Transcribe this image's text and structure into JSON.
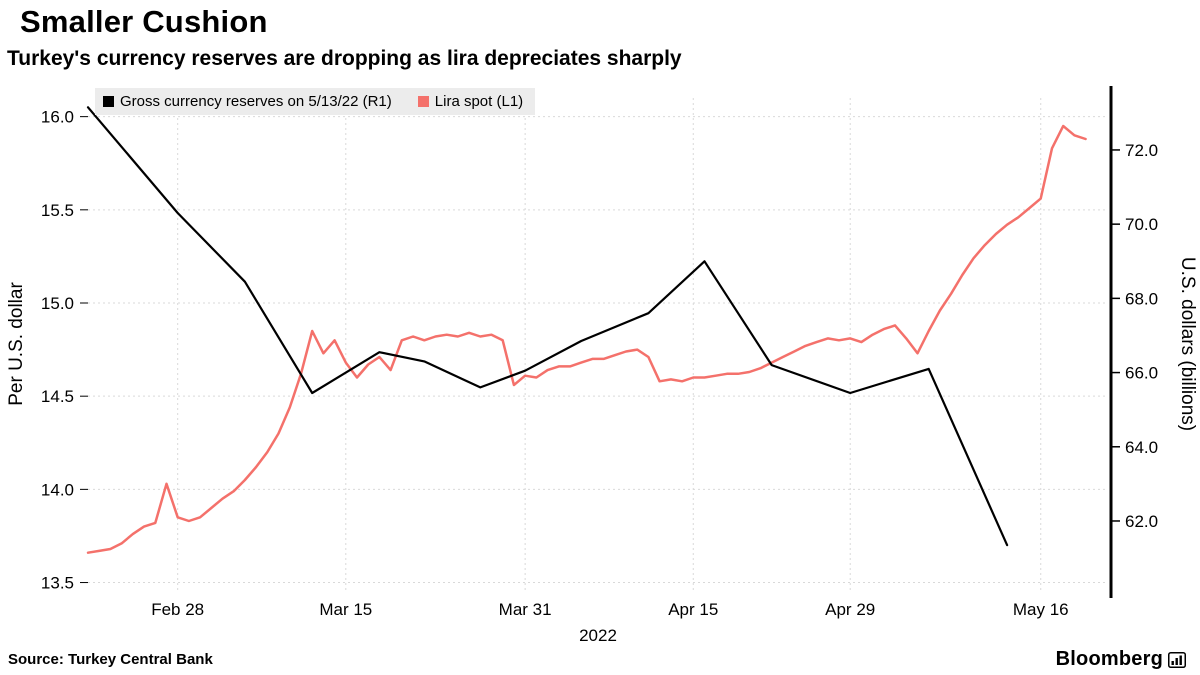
{
  "header": {
    "title": "Smaller Cushion",
    "subtitle": "Turkey's currency reserves are dropping as lira depreciates sharply"
  },
  "footer": {
    "source": "Source: Turkey Central Bank",
    "brand": "Bloomberg"
  },
  "chart_data": {
    "type": "line",
    "grid_color": "#d9d9d9",
    "x_domain": [
      2,
      93
    ],
    "x_axis_label": "2022",
    "x_ticks": [
      {
        "day": 10,
        "label": "Feb 28"
      },
      {
        "day": 25,
        "label": "Mar 15"
      },
      {
        "day": 41,
        "label": "Mar 31"
      },
      {
        "day": 56,
        "label": "Apr 15"
      },
      {
        "day": 70,
        "label": "Apr 29"
      },
      {
        "day": 87,
        "label": "May 16"
      }
    ],
    "left_axis": {
      "title": "Per U.S. dollar",
      "min": 13.46,
      "max": 16.1,
      "ticks": [
        {
          "value": 16.0,
          "label": "16.0"
        },
        {
          "value": 15.5,
          "label": "15.5"
        },
        {
          "value": 15.0,
          "label": "15.0"
        },
        {
          "value": 14.5,
          "label": "14.5"
        },
        {
          "value": 14.0,
          "label": "14.0"
        },
        {
          "value": 13.5,
          "label": "13.5"
        }
      ]
    },
    "right_axis": {
      "title": "U.S. dollars (billions)",
      "min": 60.14,
      "max": 73.4,
      "ticks": [
        {
          "value": 72.0,
          "label": "72.0"
        },
        {
          "value": 70.0,
          "label": "70.0"
        },
        {
          "value": 68.0,
          "label": "68.0"
        },
        {
          "value": 66.0,
          "label": "66.0"
        },
        {
          "value": 64.0,
          "label": "64.0"
        },
        {
          "value": 62.0,
          "label": "62.0"
        }
      ]
    },
    "series": [
      {
        "id": "reserves",
        "name": "Gross currency reserves on 5/13/22 (R1)",
        "axis": "right",
        "color": "#000000",
        "points": [
          [
            2,
            73.15
          ],
          [
            10,
            70.3
          ],
          [
            16,
            68.45
          ],
          [
            22,
            65.45
          ],
          [
            28,
            66.55
          ],
          [
            32,
            66.3
          ],
          [
            37,
            65.6
          ],
          [
            41,
            66.05
          ],
          [
            46,
            66.85
          ],
          [
            52,
            67.6
          ],
          [
            57,
            69.0
          ],
          [
            63,
            66.2
          ],
          [
            70,
            65.45
          ],
          [
            77,
            66.1
          ],
          [
            84,
            61.35
          ]
        ]
      },
      {
        "id": "lira",
        "name": "Lira spot (L1)",
        "axis": "left",
        "color": "#F4716B",
        "points": [
          [
            2,
            13.66
          ],
          [
            3,
            13.67
          ],
          [
            4,
            13.68
          ],
          [
            5,
            13.71
          ],
          [
            6,
            13.76
          ],
          [
            7,
            13.8
          ],
          [
            8,
            13.82
          ],
          [
            9,
            14.03
          ],
          [
            10,
            13.85
          ],
          [
            11,
            13.83
          ],
          [
            12,
            13.85
          ],
          [
            13,
            13.9
          ],
          [
            14,
            13.95
          ],
          [
            15,
            13.99
          ],
          [
            16,
            14.05
          ],
          [
            17,
            14.12
          ],
          [
            18,
            14.2
          ],
          [
            19,
            14.3
          ],
          [
            20,
            14.44
          ],
          [
            21,
            14.62
          ],
          [
            22,
            14.85
          ],
          [
            23,
            14.73
          ],
          [
            24,
            14.8
          ],
          [
            25,
            14.68
          ],
          [
            26,
            14.6
          ],
          [
            27,
            14.67
          ],
          [
            28,
            14.71
          ],
          [
            29,
            14.64
          ],
          [
            30,
            14.8
          ],
          [
            31,
            14.82
          ],
          [
            32,
            14.8
          ],
          [
            33,
            14.82
          ],
          [
            34,
            14.83
          ],
          [
            35,
            14.82
          ],
          [
            36,
            14.84
          ],
          [
            37,
            14.82
          ],
          [
            38,
            14.83
          ],
          [
            39,
            14.8
          ],
          [
            40,
            14.56
          ],
          [
            41,
            14.61
          ],
          [
            42,
            14.6
          ],
          [
            43,
            14.64
          ],
          [
            44,
            14.66
          ],
          [
            45,
            14.66
          ],
          [
            46,
            14.68
          ],
          [
            47,
            14.7
          ],
          [
            48,
            14.7
          ],
          [
            49,
            14.72
          ],
          [
            50,
            14.74
          ],
          [
            51,
            14.75
          ],
          [
            52,
            14.71
          ],
          [
            53,
            14.58
          ],
          [
            54,
            14.59
          ],
          [
            55,
            14.58
          ],
          [
            56,
            14.6
          ],
          [
            57,
            14.6
          ],
          [
            58,
            14.61
          ],
          [
            59,
            14.62
          ],
          [
            60,
            14.62
          ],
          [
            61,
            14.63
          ],
          [
            62,
            14.65
          ],
          [
            63,
            14.68
          ],
          [
            64,
            14.71
          ],
          [
            65,
            14.74
          ],
          [
            66,
            14.77
          ],
          [
            67,
            14.79
          ],
          [
            68,
            14.81
          ],
          [
            69,
            14.8
          ],
          [
            70,
            14.81
          ],
          [
            71,
            14.79
          ],
          [
            72,
            14.83
          ],
          [
            73,
            14.86
          ],
          [
            74,
            14.88
          ],
          [
            75,
            14.81
          ],
          [
            76,
            14.73
          ],
          [
            77,
            14.85
          ],
          [
            78,
            14.96
          ],
          [
            79,
            15.05
          ],
          [
            80,
            15.15
          ],
          [
            81,
            15.24
          ],
          [
            82,
            15.31
          ],
          [
            83,
            15.37
          ],
          [
            84,
            15.42
          ],
          [
            85,
            15.46
          ],
          [
            86,
            15.51
          ],
          [
            87,
            15.56
          ],
          [
            88,
            15.83
          ],
          [
            89,
            15.95
          ],
          [
            90,
            15.9
          ],
          [
            91,
            15.88
          ]
        ]
      }
    ]
  }
}
